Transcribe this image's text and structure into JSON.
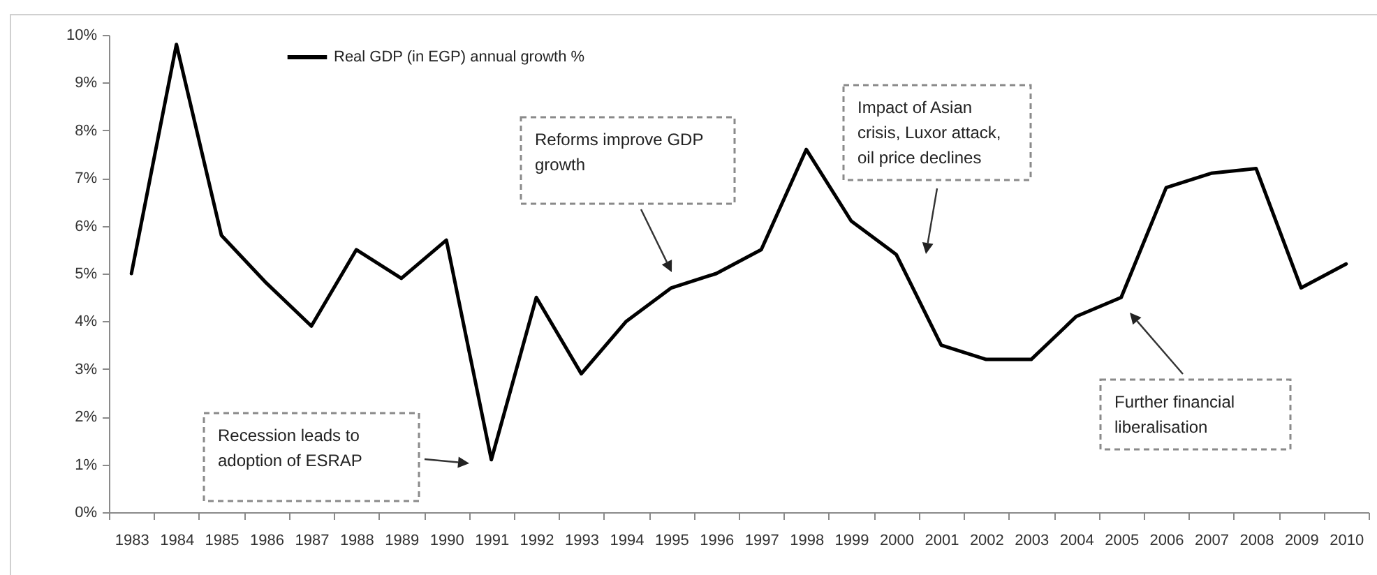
{
  "chart_data": {
    "type": "line",
    "categories": [
      "1983",
      "1984",
      "1985",
      "1986",
      "1987",
      "1988",
      "1989",
      "1990",
      "1991",
      "1992",
      "1993",
      "1994",
      "1995",
      "1996",
      "1997",
      "1998",
      "1999",
      "2000",
      "2001",
      "2002",
      "2003",
      "2004",
      "2005",
      "2006",
      "2007",
      "2008",
      "2009",
      "2010"
    ],
    "series": [
      {
        "name": "Real GDP (in EGP) annual growth %",
        "color": "#000000",
        "values": [
          5.0,
          9.8,
          5.8,
          4.8,
          3.9,
          5.5,
          4.9,
          5.7,
          1.1,
          4.5,
          2.9,
          4.0,
          4.7,
          5.0,
          5.5,
          7.6,
          6.1,
          5.4,
          3.5,
          3.2,
          3.2,
          4.1,
          4.5,
          6.8,
          7.1,
          7.2,
          4.7,
          5.2
        ]
      }
    ],
    "ylim": [
      0,
      10
    ],
    "yticks": [
      {
        "value": 0,
        "label": "0%"
      },
      {
        "value": 1,
        "label": "1%"
      },
      {
        "value": 2,
        "label": "2%"
      },
      {
        "value": 3,
        "label": "3%"
      },
      {
        "value": 4,
        "label": "4%"
      },
      {
        "value": 5,
        "label": "5%"
      },
      {
        "value": 6,
        "label": "6%"
      },
      {
        "value": 7,
        "label": "7%"
      },
      {
        "value": 8,
        "label": "8%"
      },
      {
        "value": 9,
        "label": "9%"
      },
      {
        "value": 10,
        "label": "10%"
      }
    ],
    "legend": "top left",
    "annotations": [
      "Recession leads to adoption of ESRAP",
      "Reforms improve GDP growth",
      "Impact of Asian crisis, Luxor attack, oil price declines",
      "Further financial liberalisation"
    ]
  }
}
